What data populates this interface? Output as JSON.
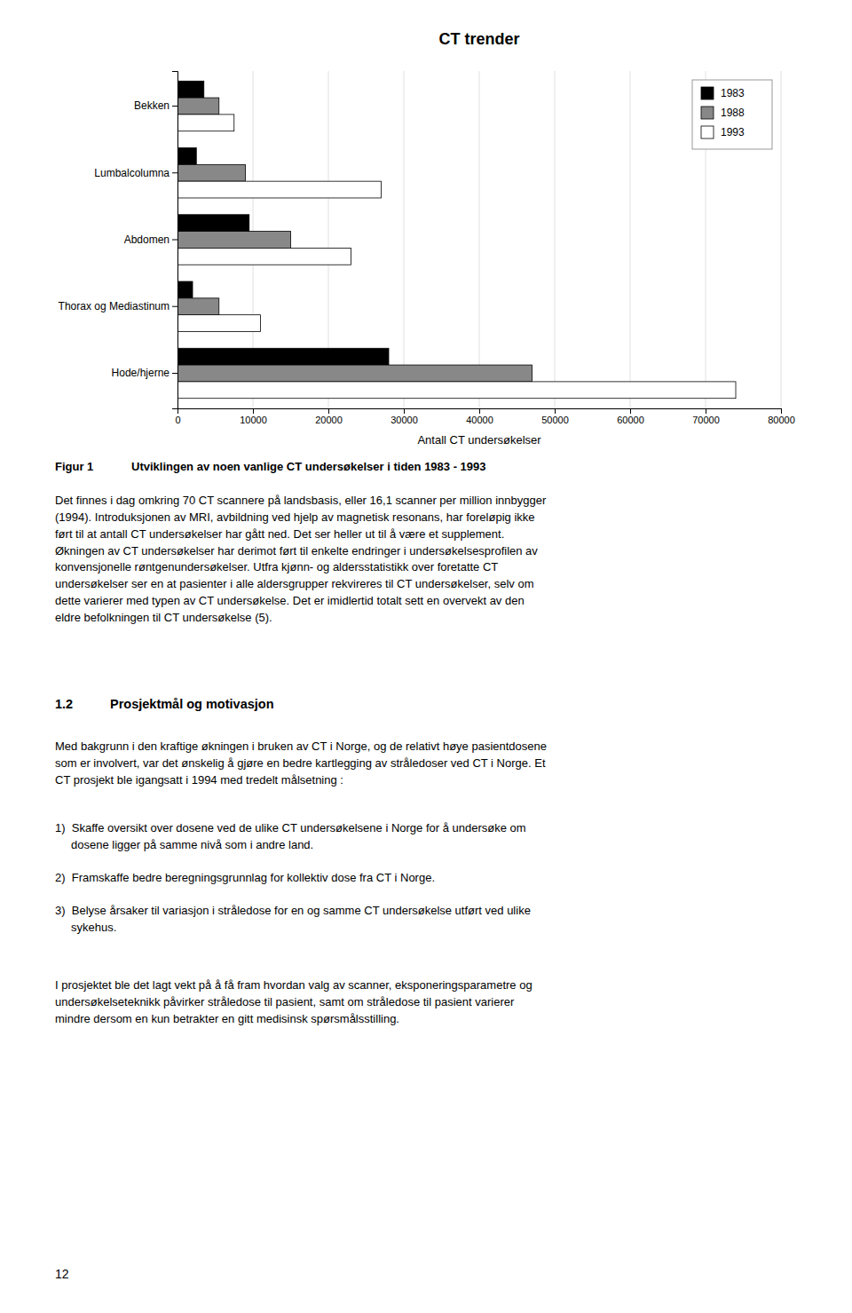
{
  "chart_data": {
    "type": "bar",
    "orientation": "horizontal",
    "title": "CT trender",
    "x_label": "Antall CT undersøkelser",
    "categories": [
      "Bekken",
      "Lumbalcolumna",
      "Abdomen",
      "Thorax og Mediastinum",
      "Hode/hjerne"
    ],
    "series": [
      {
        "name": "1983",
        "color": "#000000",
        "values": [
          3500,
          2500,
          9500,
          2000,
          28000
        ]
      },
      {
        "name": "1988",
        "color": "#888888",
        "values": [
          5500,
          9000,
          15000,
          5500,
          47000
        ]
      },
      {
        "name": "1993",
        "color": "#ffffff",
        "values": [
          7500,
          27000,
          23000,
          11000,
          74000
        ]
      }
    ],
    "xlim": [
      0,
      80000
    ],
    "xticks": [
      0,
      10000,
      20000,
      30000,
      40000,
      50000,
      60000,
      70000,
      80000
    ],
    "grid": true,
    "legend": "upper right",
    "annotations": [
      "Figur 1",
      "Utviklingen av noen vanlige CT undersøkelser i tiden 1983 - 1993",
      "Det finnes i dag omkring 70 CT scannere på landsbasis, eller 16,1 scanner per million innbygger\n(1994). Introduksjonen av MRI, avbildning ved hjelp av magnetisk resonans, har foreløpig ikke\nført til at antall CT undersøkelser har gått ned. Det ser heller ut til å være et supplement.\nØkningen av CT undersøkelser har derimot ført til enkelte endringer i undersøkelsesprofilen av\nkonvensjonelle røntgenundersøkelser. Utfra kjønn- og aldersstatistikk over foretatte CT\nundersøkelser ser en at pasienter i alle aldersgrupper rekvireres til CT undersøkelser, selv om\ndette varierer med typen av CT undersøkelse. Det er imidlertid totalt sett en overvekt av den\neldre befolkningen til CT undersøkelse (5).",
      "1.2",
      "Prosjektmål og motivasjon",
      "Med bakgrunn i den kraftige økningen i bruken av CT i Norge, og de relativt høye pasientdosene\nsom er involvert, var det ønskelig å gjøre en bedre kartlegging av stråledoser ved CT i Norge. Et\nCT prosjekt ble igangsatt i 1994 med tredelt målsetning :",
      "1)  Skaffe oversikt over dosene ved de ulike CT undersøkelsene i Norge for å undersøke om\n     dosene ligger på samme nivå som i andre land.",
      "2)  Framskaffe bedre beregningsgrunnlag for kollektiv dose fra CT i Norge.",
      "3)  Belyse årsaker til variasjon i stråledose for en og samme CT undersøkelse utført ved ulike\n     sykehus.",
      "I prosjektet ble det lagt vekt på å få fram hvordan valg av scanner, eksponeringsparametre og\nundersøkelseteknikk påvirker stråledose til pasient, samt om stråledose til pasient varierer\nmindre dersom en kun betrakter en gitt medisinsk spørsmålsstilling.",
      "12"
    ]
  }
}
